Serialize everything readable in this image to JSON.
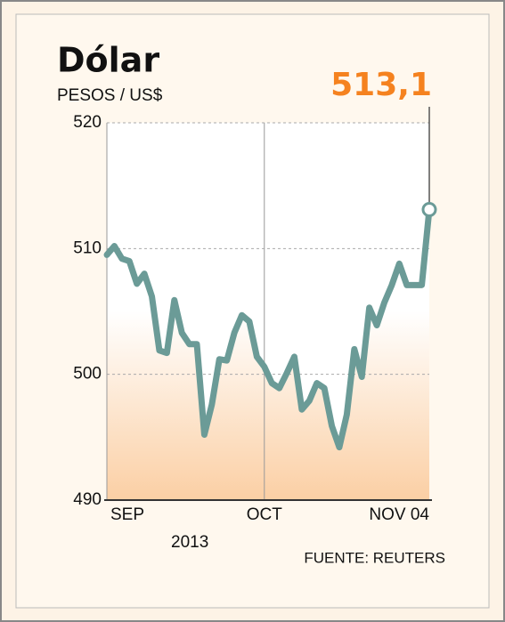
{
  "chart_data": {
    "type": "line",
    "title": "Dólar",
    "subtitle": "PESOS / US$",
    "year_label": "2013",
    "source": "FUENTE: REUTERS",
    "categories": [
      "SEP",
      null,
      null,
      null,
      null,
      null,
      null,
      null,
      null,
      null,
      null,
      null,
      null,
      null,
      null,
      null,
      null,
      null,
      null,
      null,
      null,
      "OCT",
      null,
      null,
      null,
      null,
      null,
      null,
      null,
      null,
      null,
      null,
      null,
      null,
      null,
      null,
      null,
      null,
      null,
      null,
      null,
      null,
      null,
      "NOV 04"
    ],
    "series": [
      {
        "name": "Dólar",
        "color": "#6b9b97",
        "values": [
          509.5,
          510.2,
          509.2,
          509.0,
          507.2,
          508.0,
          506.2,
          501.9,
          501.7,
          505.9,
          503.3,
          502.4,
          502.4,
          495.2,
          497.6,
          501.2,
          501.1,
          503.3,
          504.7,
          504.2,
          501.4,
          500.6,
          499.3,
          498.9,
          500.1,
          501.4,
          497.2,
          497.9,
          499.3,
          498.9,
          495.9,
          494.2,
          496.8,
          502.0,
          499.8,
          505.3,
          503.9,
          505.7,
          507.1,
          508.8,
          507.1,
          507.1,
          507.1,
          513.1
        ],
        "value_labels": [
          null,
          null,
          null,
          null,
          null,
          null,
          null,
          null,
          null,
          null,
          null,
          null,
          null,
          null,
          null,
          null,
          null,
          null,
          null,
          null,
          null,
          null,
          null,
          null,
          null,
          null,
          null,
          null,
          null,
          null,
          null,
          null,
          null,
          null,
          null,
          null,
          null,
          null,
          null,
          null,
          null,
          null,
          null,
          "513,1"
        ]
      }
    ],
    "ylim": [
      490,
      520
    ],
    "yticks": [
      490,
      500,
      510,
      520
    ],
    "grid": true
  }
}
